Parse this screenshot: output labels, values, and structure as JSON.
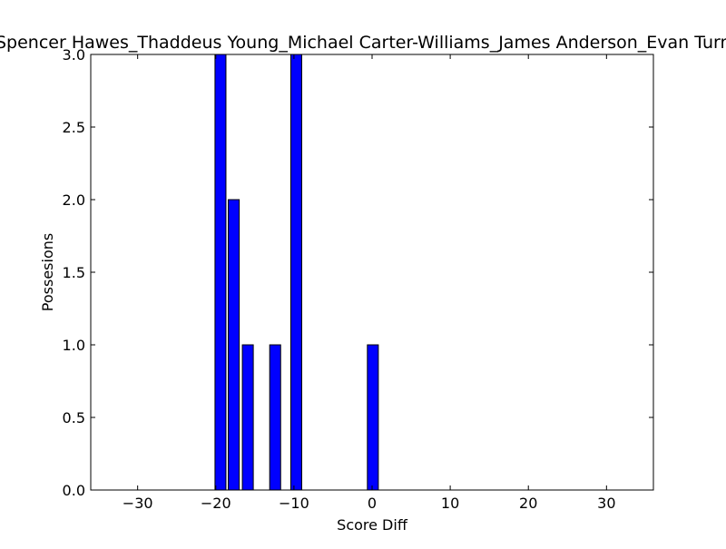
{
  "chart_data": {
    "type": "bar",
    "title": "Spencer Hawes_Thaddeus Young_Michael Carter-Williams_James Anderson_Evan Turner",
    "xlabel": "Score Diff",
    "ylabel": "Possesions",
    "xlim": [
      -36,
      36
    ],
    "ylim": [
      0,
      3.0
    ],
    "x_ticks": [
      -30,
      -20,
      -10,
      0,
      10,
      20,
      30
    ],
    "x_tick_labels": [
      "−30",
      "−20",
      "−10",
      "0",
      "10",
      "20",
      "30"
    ],
    "y_ticks": [
      0.0,
      0.5,
      1.0,
      1.5,
      2.0,
      2.5,
      3.0
    ],
    "y_tick_labels": [
      "0.0",
      "0.5",
      "1.0",
      "1.5",
      "2.0",
      "2.5",
      "3.0"
    ],
    "bar_width": 1.4,
    "bars": [
      {
        "x": -19.4,
        "value": 3
      },
      {
        "x": -17.7,
        "value": 2
      },
      {
        "x": -15.9,
        "value": 1
      },
      {
        "x": -12.4,
        "value": 1
      },
      {
        "x": -9.7,
        "value": 3
      },
      {
        "x": 0.1,
        "value": 1
      }
    ],
    "grid": false,
    "bar_color": "#0000ff",
    "edge_color": "#000000"
  }
}
